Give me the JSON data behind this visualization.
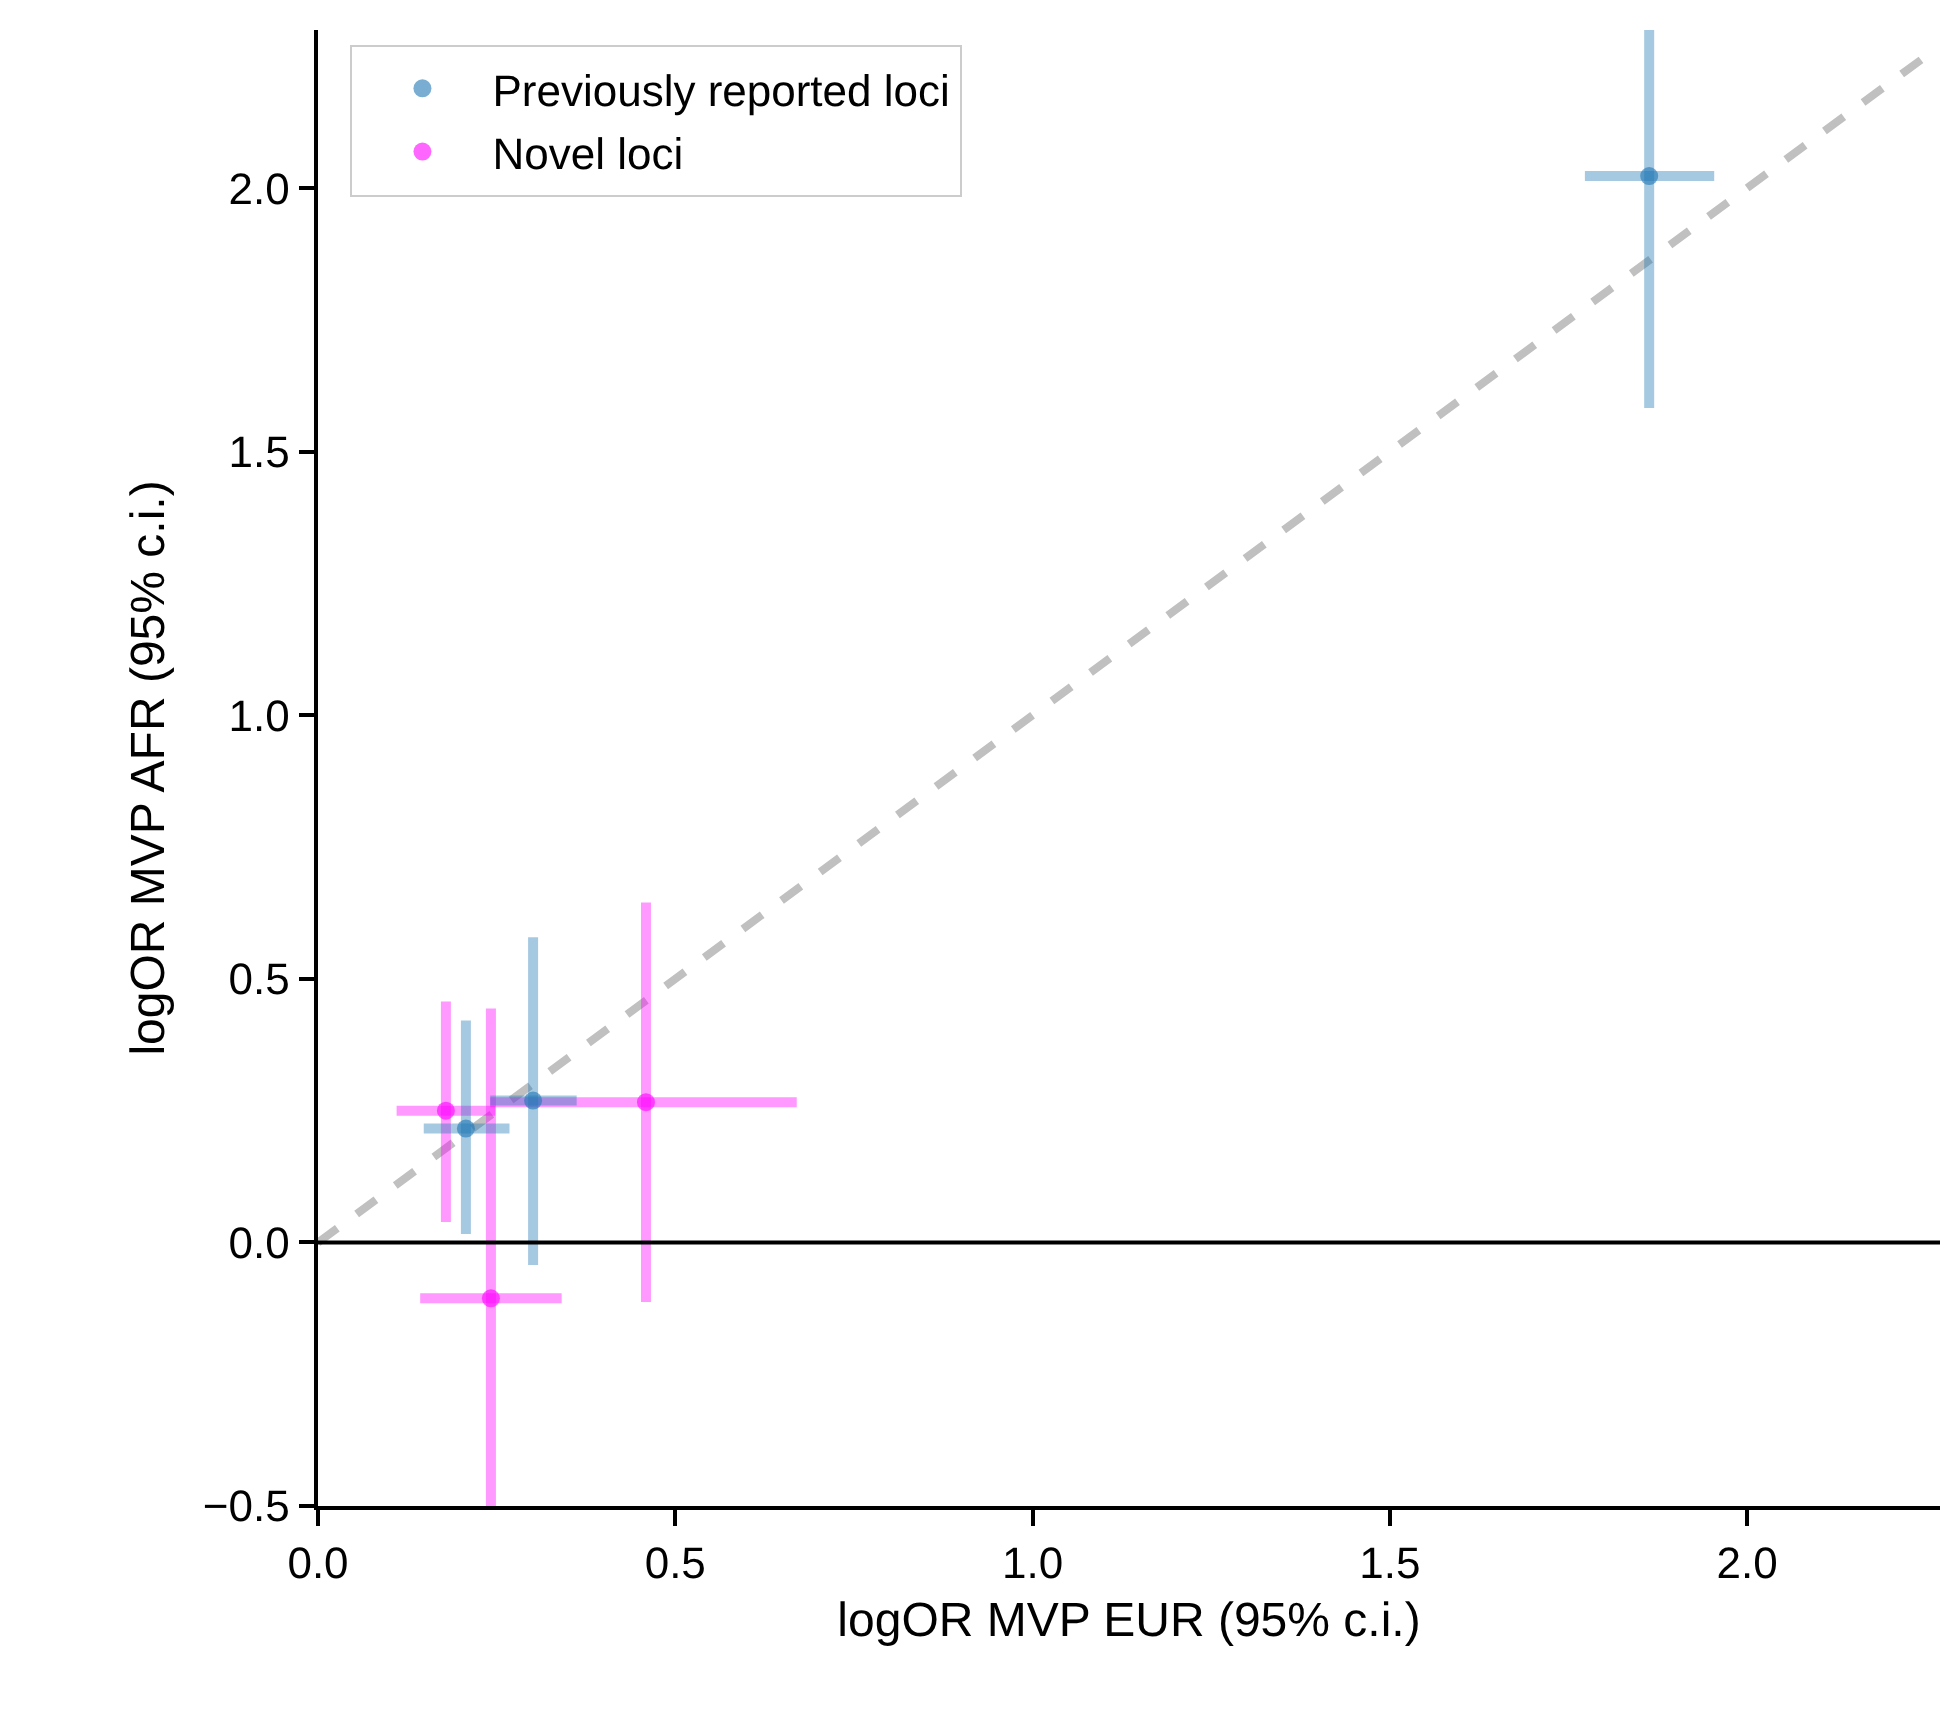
{
  "chart_data": {
    "type": "scatter",
    "xlabel": "logOR MVP EUR (95% c.i.)",
    "ylabel": "logOR MVP AFR (95% c.i.)",
    "xlim": [
      0,
      2.27
    ],
    "ylim": [
      -0.5,
      2.3
    ],
    "xticks": [
      {
        "value": 0,
        "label": "0.0"
      },
      {
        "value": 0.5,
        "label": "0.5"
      },
      {
        "value": 1,
        "label": "1.0"
      },
      {
        "value": 1.5,
        "label": "1.5"
      },
      {
        "value": 2,
        "label": "2.0"
      }
    ],
    "yticks": [
      {
        "value": -0.5,
        "label": "−0.5"
      },
      {
        "value": 0,
        "label": "0.0"
      },
      {
        "value": 0.5,
        "label": "0.5"
      },
      {
        "value": 1,
        "label": "1.0"
      },
      {
        "value": 1.5,
        "label": "1.5"
      },
      {
        "value": 2,
        "label": "2.0"
      }
    ],
    "grid": false,
    "legend": "top left",
    "marker": "circle",
    "ref_lines": [
      {
        "axis": "y",
        "value": 0,
        "color": "#000000",
        "line_style": "solid"
      }
    ],
    "series": [
      {
        "name": "Previously reported loci",
        "color": "#1f77b4",
        "x": [
          0.207,
          0.301,
          1.863
        ],
        "values": [
          0.216,
          0.269,
          2.023
        ],
        "xerrors": [
          [
            0.148,
            0.268
          ],
          [
            0.241,
            0.362
          ],
          [
            1.773,
            1.954
          ]
        ],
        "errors": [
          [
            0.016,
            0.421
          ],
          [
            -0.043,
            0.579
          ],
          [
            1.583,
            2.3
          ]
        ]
      },
      {
        "name": "Novel loci",
        "color": "#ff00ff",
        "x": [
          0.179,
          0.459,
          0.242
        ],
        "values": [
          0.25,
          0.266,
          -0.106
        ],
        "xerrors": [
          [
            0.11,
            0.248
          ],
          [
            0.241,
            0.67
          ],
          [
            0.143,
            0.341
          ]
        ],
        "errors": [
          [
            0.039,
            0.457
          ],
          [
            -0.113,
            0.645
          ],
          [
            -0.5,
            0.444
          ]
        ]
      },
      {
        "type": "line",
        "color": "#c0c0c0",
        "line_style": "dashed",
        "marker": "none",
        "x": [
          0,
          2.27
        ],
        "values": [
          0,
          2.27
        ]
      }
    ]
  }
}
